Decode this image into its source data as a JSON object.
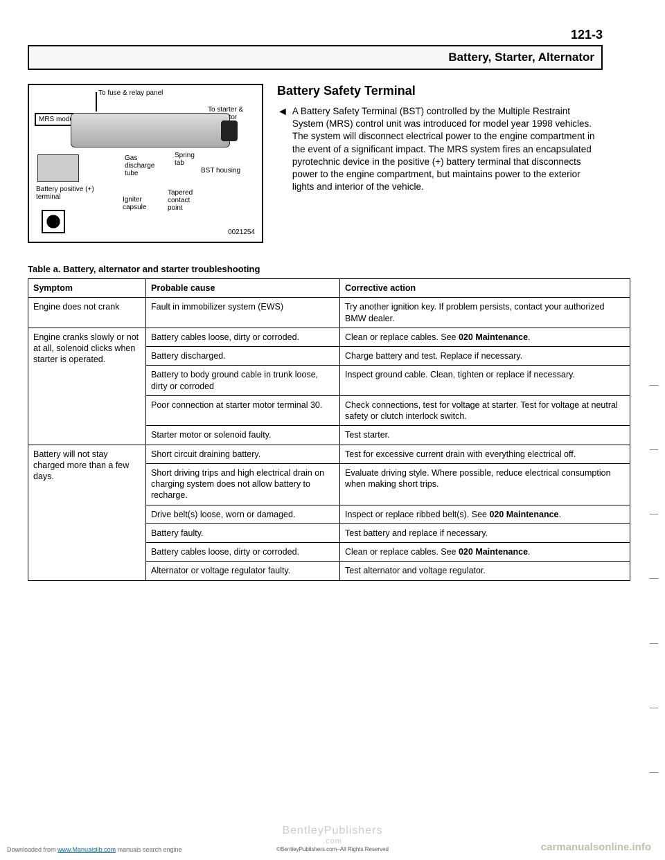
{
  "page_number": "121-3",
  "header_title": "Battery, Starter, Alternator",
  "figure": {
    "top_label": "To fuse & relay panel",
    "to_starter": "To starter & alternator",
    "mrs": "MRS module",
    "gas": "Gas discharge tube",
    "spring": "Spring tab",
    "bst": "BST housing",
    "batt_pos": "Battery positive (+) terminal",
    "igniter": "Igniter capsule",
    "tapered": "Tapered contact point",
    "id": "0021254"
  },
  "section_title": "Battery Safety Terminal",
  "paragraph": "A Battery Safety Terminal (BST) controlled by the Multiple Restraint System (MRS) control unit was introduced for model year 1998 vehicles. The system will disconnect electrical power to the engine compartment in the event of a significant impact. The MRS system fires an encapsulated pyrotechnic device in the positive (+) battery terminal that disconnects power to the engine compartment, but maintains power to the exterior lights and interior of the vehicle.",
  "table_caption": "Table a. Battery, alternator and starter troubleshooting",
  "columns": [
    "Symptom",
    "Probable cause",
    "Corrective action"
  ],
  "groups": [
    {
      "symptom": "Engine does not crank",
      "rows": [
        {
          "cause": "Fault in immobilizer system (EWS)",
          "action": "Try another ignition key. If problem persists, contact your authorized BMW dealer."
        }
      ]
    },
    {
      "symptom": "Engine cranks slowly or not at all, solenoid clicks when starter is operated.",
      "rows": [
        {
          "cause": "Battery cables loose, dirty or corroded.",
          "action_html": "Clean or replace cables. See <b>020 Maintenance</b>."
        },
        {
          "cause": "Battery discharged.",
          "action": "Charge battery and test. Replace if necessary."
        },
        {
          "cause": "Battery to body ground cable in trunk loose, dirty or corroded",
          "action": "Inspect ground cable. Clean, tighten or replace if necessary."
        },
        {
          "cause": "Poor connection at starter motor terminal 30.",
          "action": "Check connections, test for voltage at starter. Test for voltage at neutral safety or clutch interlock switch."
        },
        {
          "cause": "Starter motor or solenoid faulty.",
          "action": "Test starter."
        }
      ]
    },
    {
      "symptom": "Battery will not stay charged more than a few days.",
      "rows": [
        {
          "cause": "Short circuit draining battery.",
          "action": "Test for excessive current drain with everything electrical off."
        },
        {
          "cause": "Short driving trips and high electrical drain on charging system does not allow battery to recharge.",
          "action": "Evaluate driving style. Where possible, reduce electrical consumption when making short trips."
        },
        {
          "cause": "Drive belt(s) loose, worn or damaged.",
          "action_html": "Inspect or replace ribbed belt(s). See <b>020 Maintenance</b>."
        },
        {
          "cause": "Battery faulty.",
          "action": "Test battery and replace if necessary."
        },
        {
          "cause": "Battery cables loose, dirty or corroded.",
          "action_html": "Clean or replace cables. See <b>020 Maintenance</b>."
        },
        {
          "cause": "Alternator or voltage regulator faulty.",
          "action": "Test alternator and voltage regulator."
        }
      ]
    }
  ],
  "watermark": "BentleyPublishers",
  "watermark_sub": ".com",
  "copyright": "©BentleyPublishers.com–All Rights Reserved",
  "footer_left_pre": "Downloaded from ",
  "footer_left_link": "www.Manualslib.com",
  "footer_left_post": " manuals search engine",
  "footer_right": "carmanualsonline.info"
}
